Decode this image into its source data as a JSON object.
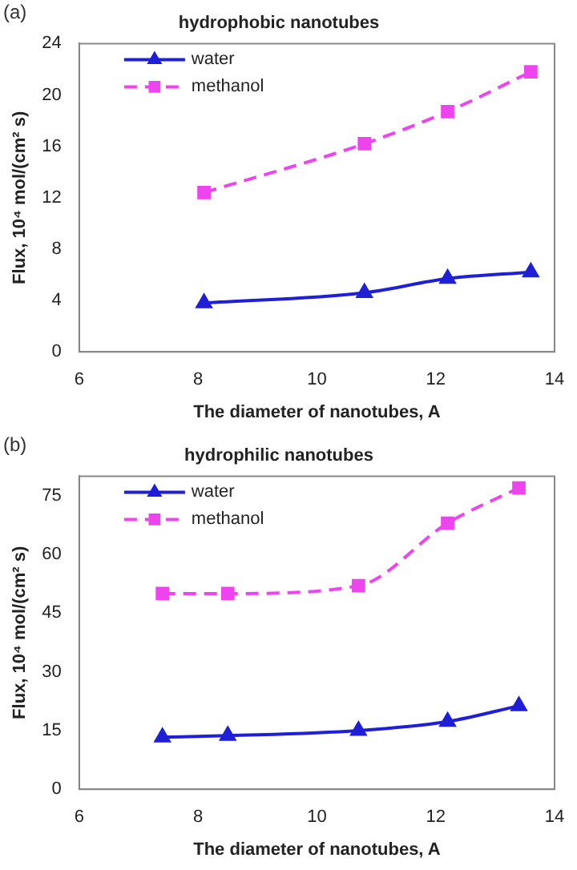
{
  "chart_data": [
    {
      "type": "line",
      "title": "hydrophobic nanotubes",
      "xlabel": "The diameter of nanotubes, A",
      "ylabel": "Flux, 10⁴ mol/(cm² s)",
      "annotations": [
        "(a)"
      ],
      "xlim": [
        6,
        14
      ],
      "xticks": [
        6,
        8,
        10,
        12,
        14
      ],
      "ylim": [
        0,
        24
      ],
      "yticks": [
        0,
        4,
        8,
        12,
        16,
        20,
        24
      ],
      "grid": false,
      "legend": "top left",
      "series": [
        {
          "name": "water",
          "color": "#1f1fd6",
          "marker": "triangle",
          "line_style": "solid",
          "x": [
            8.1,
            10.8,
            12.2,
            13.6
          ],
          "values": [
            3.8,
            4.6,
            5.7,
            6.2
          ]
        },
        {
          "name": "methanol",
          "color": "#ee44ee",
          "marker": "square",
          "line_style": "dashed",
          "x": [
            8.1,
            10.8,
            12.2,
            13.6
          ],
          "values": [
            12.4,
            16.2,
            18.7,
            21.8
          ]
        }
      ]
    },
    {
      "type": "line",
      "title": "hydrophilic nanotubes",
      "xlabel": "The diameter of nanotubes, A",
      "ylabel": "Flux, 10⁴ mol/(cm² s)",
      "annotations": [
        "(b)"
      ],
      "xlim": [
        6,
        14
      ],
      "xticks": [
        6,
        8,
        10,
        12,
        14
      ],
      "ylim": [
        0,
        80
      ],
      "yticks": [
        0,
        15,
        30,
        45,
        60,
        75
      ],
      "grid": false,
      "legend": "top left",
      "series": [
        {
          "name": "water",
          "color": "#1f1fd6",
          "marker": "triangle",
          "line_style": "solid",
          "x": [
            7.4,
            8.5,
            10.7,
            12.2,
            13.4
          ],
          "values": [
            13.3,
            13.7,
            15.0,
            17.3,
            21.3
          ]
        },
        {
          "name": "methanol",
          "color": "#ee44ee",
          "marker": "square",
          "line_style": "dashed",
          "x": [
            7.4,
            8.5,
            10.7,
            12.2,
            13.4
          ],
          "values": [
            50,
            50,
            52,
            68,
            77
          ]
        }
      ]
    }
  ]
}
